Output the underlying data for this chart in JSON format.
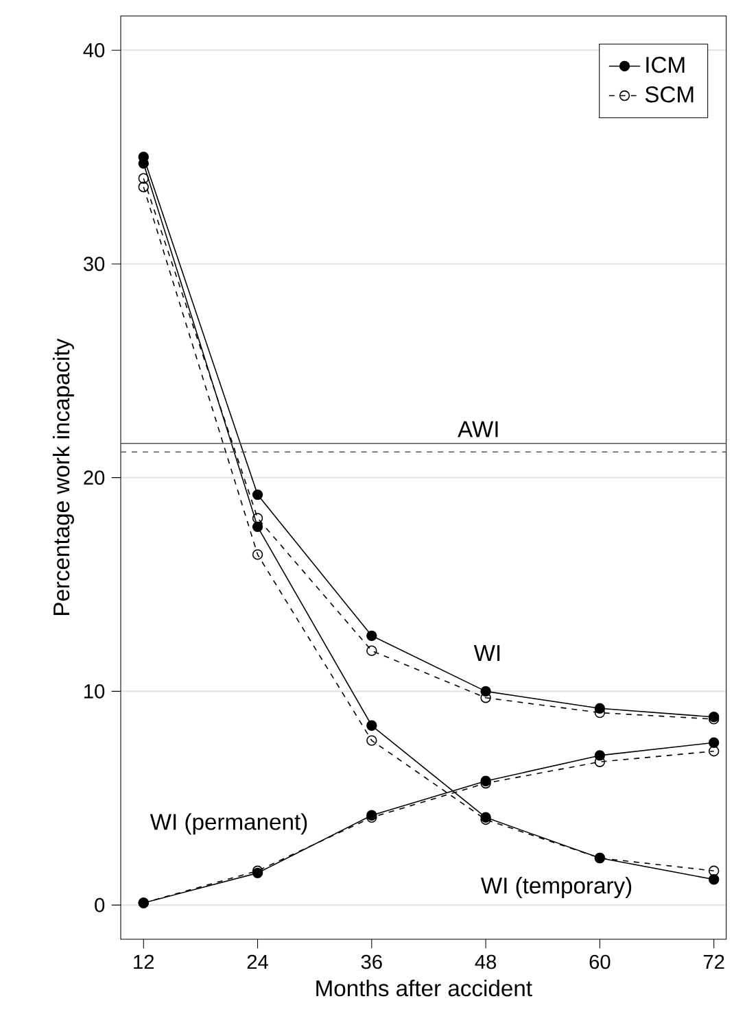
{
  "chart_data": {
    "type": "line",
    "xlabel": "Months after accident",
    "ylabel": "Percentage work incapacity",
    "x": [
      12,
      24,
      36,
      48,
      60,
      72
    ],
    "series": [
      {
        "name": "ICM",
        "color": "#000000",
        "line_style": "solid",
        "values": [
          35.0,
          19.2,
          12.6,
          10.0,
          9.2,
          8.8
        ]
      },
      {
        "name": "SCM",
        "color": "#000000",
        "line_style": "dashed",
        "values": [
          34.0,
          18.1,
          11.9,
          9.7,
          9.0,
          8.7
        ]
      },
      {
        "color": "#000000",
        "line_style": "solid",
        "values": [
          34.7,
          17.7,
          8.4,
          4.1,
          2.2,
          1.2
        ]
      },
      {
        "color": "#000000",
        "line_style": "dashed",
        "values": [
          33.6,
          16.4,
          7.7,
          4.0,
          2.2,
          1.6
        ]
      },
      {
        "color": "#000000",
        "line_style": "solid",
        "values": [
          0.1,
          1.5,
          4.2,
          5.8,
          7.0,
          7.6
        ]
      },
      {
        "color": "#000000",
        "line_style": "dashed",
        "values": [
          0.1,
          1.6,
          4.1,
          5.7,
          6.7,
          7.2
        ]
      }
    ],
    "ref_lines": [
      {
        "axis": "y",
        "value": 21.6,
        "label": "AWI",
        "color": "#555555",
        "line_style": "solid"
      },
      {
        "axis": "y",
        "value": 21.2,
        "color": "#555555",
        "line_style": "dashed"
      }
    ],
    "annotations": [
      "WI",
      "WI (permanent)",
      "WI (temporary)"
    ],
    "xlim": [
      9.6,
      73.3
    ],
    "ylim": [
      -1.6,
      41.6
    ],
    "xticks": [
      12,
      24,
      36,
      48,
      60,
      72
    ],
    "yticks": [
      0,
      10,
      20,
      30,
      40
    ],
    "grid": "y",
    "legend": "top right",
    "marker": "circle"
  }
}
